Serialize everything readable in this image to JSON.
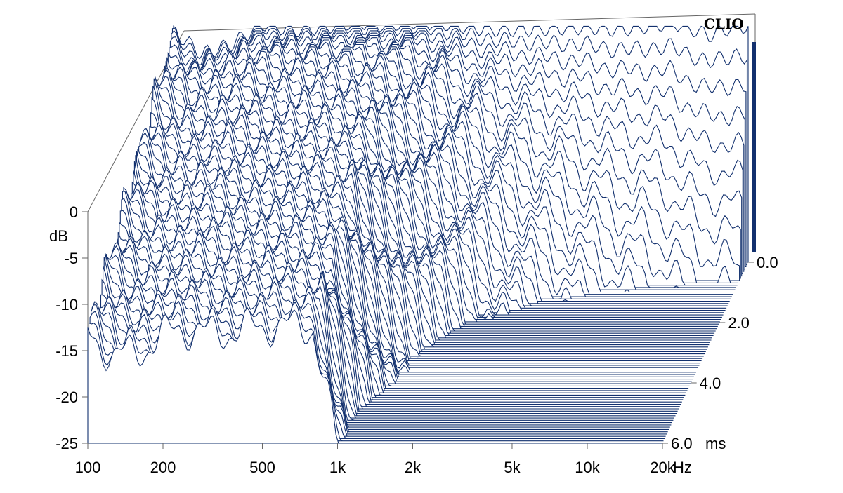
{
  "chart_data": {
    "type": "waterfall",
    "title": "",
    "watermark": "CLIO",
    "x_axis": {
      "label": "Hz",
      "scale": "log",
      "range": [
        100,
        20000
      ],
      "tick_labels": [
        "100",
        "200",
        "500",
        "1k",
        "2k",
        "5k",
        "10k",
        "20k"
      ],
      "tick_values": [
        100,
        200,
        500,
        1000,
        2000,
        5000,
        10000,
        20000
      ]
    },
    "y_axis": {
      "label": "dB",
      "range": [
        -25,
        0
      ],
      "tick_labels": [
        "0",
        "-5",
        "-10",
        "-15",
        "-20",
        "-25"
      ],
      "tick_values": [
        0,
        -5,
        -10,
        -15,
        -20,
        -25
      ]
    },
    "z_axis": {
      "label": "ms",
      "range": [
        0,
        6
      ],
      "tick_labels": [
        "0.0",
        "2.0",
        "4.0",
        "6.0"
      ],
      "tick_values": [
        0,
        2,
        4,
        6
      ]
    },
    "slices": 80,
    "front_curve": [
      {
        "f": 100,
        "db": 0
      },
      {
        "f": 130,
        "db": -2.5
      },
      {
        "f": 170,
        "db": -1.5
      },
      {
        "f": 230,
        "db": 0.8
      },
      {
        "f": 300,
        "db": 0
      },
      {
        "f": 400,
        "db": 0.4
      },
      {
        "f": 550,
        "db": 1.0
      },
      {
        "f": 700,
        "db": 0.6
      },
      {
        "f": 900,
        "db": 1.0
      },
      {
        "f": 1200,
        "db": 0.8
      },
      {
        "f": 1600,
        "db": 0.3
      },
      {
        "f": 2000,
        "db": 0.1
      },
      {
        "f": 3000,
        "db": 0.2
      },
      {
        "f": 4500,
        "db": 0.4
      },
      {
        "f": 6000,
        "db": 0.1
      },
      {
        "f": 8000,
        "db": 0.5
      },
      {
        "f": 10000,
        "db": 0.9
      },
      {
        "f": 14000,
        "db": -0.5
      },
      {
        "f": 18000,
        "db": 0.6
      },
      {
        "f": 20000,
        "db": 0.4
      }
    ],
    "colors": {
      "line": "#12306e",
      "fill": "#ffffff",
      "axis": "#666666",
      "text": "#000000"
    },
    "grid": false
  }
}
